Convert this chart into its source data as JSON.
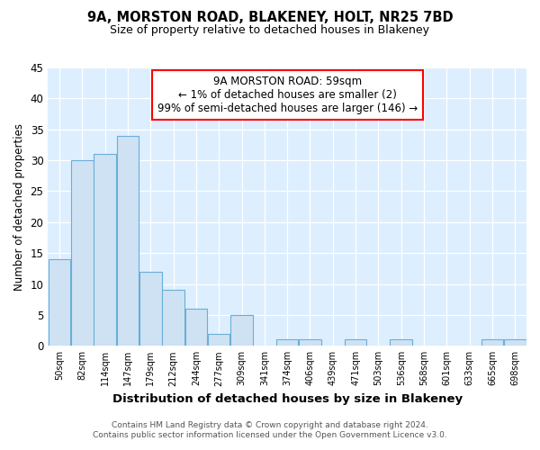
{
  "title": "9A, MORSTON ROAD, BLAKENEY, HOLT, NR25 7BD",
  "subtitle": "Size of property relative to detached houses in Blakeney",
  "xlabel": "Distribution of detached houses by size in Blakeney",
  "ylabel": "Number of detached properties",
  "footer_line1": "Contains HM Land Registry data © Crown copyright and database right 2024.",
  "footer_line2": "Contains public sector information licensed under the Open Government Licence v3.0.",
  "bar_labels": [
    "50sqm",
    "82sqm",
    "114sqm",
    "147sqm",
    "179sqm",
    "212sqm",
    "244sqm",
    "277sqm",
    "309sqm",
    "341sqm",
    "374sqm",
    "406sqm",
    "439sqm",
    "471sqm",
    "503sqm",
    "536sqm",
    "568sqm",
    "601sqm",
    "633sqm",
    "665sqm",
    "698sqm"
  ],
  "bar_values": [
    14,
    30,
    31,
    34,
    12,
    9,
    6,
    2,
    5,
    0,
    1,
    1,
    0,
    1,
    0,
    1,
    0,
    0,
    0,
    1,
    1
  ],
  "bar_color": "#cfe2f3",
  "bar_edge_color": "#6aaed6",
  "ylim": [
    0,
    45
  ],
  "yticks": [
    0,
    5,
    10,
    15,
    20,
    25,
    30,
    35,
    40,
    45
  ],
  "annotation_title": "9A MORSTON ROAD: 59sqm",
  "annotation_line1": "← 1% of detached houses are smaller (2)",
  "annotation_line2": "99% of semi-detached houses are larger (146) →",
  "annotation_box_color": "white",
  "annotation_border_color": "red",
  "background_color": "#ddeeff",
  "grid_color": "white",
  "fig_width": 6.0,
  "fig_height": 5.0,
  "dpi": 100
}
